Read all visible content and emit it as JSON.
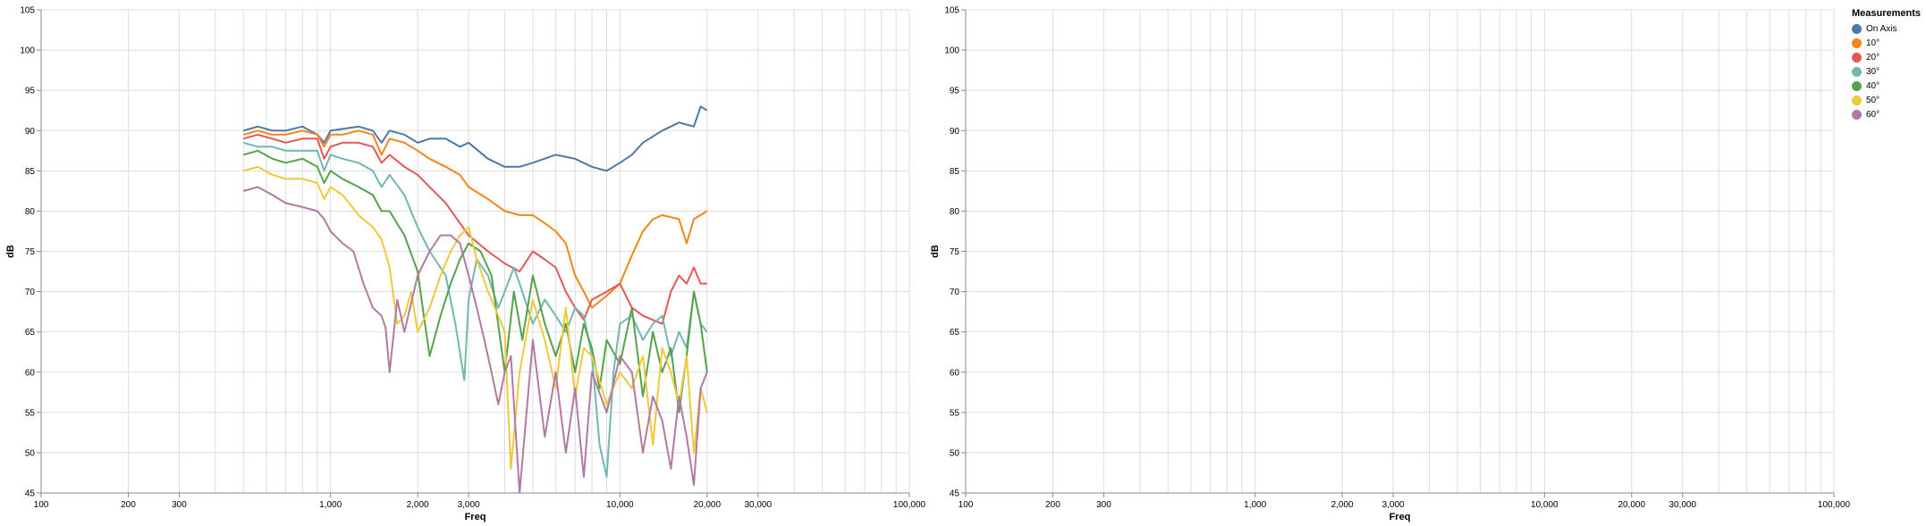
{
  "chart_data": [
    {
      "type": "line",
      "xlabel": "Freq",
      "ylabel": "dB",
      "xscale": "log",
      "xlim": [
        100,
        100000
      ],
      "ylim": [
        45,
        105
      ],
      "xticks": [
        100,
        200,
        300,
        1000,
        2000,
        3000,
        10000,
        20000,
        30000,
        100000
      ],
      "xtick_labels": [
        "100",
        "200",
        "300",
        "1,000",
        "2,000",
        "3,000",
        "10,000",
        "20,000",
        "30,000",
        "100,000"
      ],
      "yticks": [
        45,
        50,
        55,
        60,
        65,
        70,
        75,
        80,
        85,
        90,
        95,
        100,
        105
      ],
      "grid": true,
      "series": [
        {
          "name": "On Axis",
          "color": "#4c78a8",
          "x": [
            500,
            560,
            630,
            700,
            800,
            900,
            950,
            1000,
            1100,
            1250,
            1400,
            1500,
            1600,
            1800,
            2000,
            2200,
            2500,
            2800,
            3000,
            3500,
            4000,
            4500,
            5000,
            6000,
            7000,
            8000,
            9000,
            10000,
            11000,
            12000,
            14000,
            16000,
            18000,
            19000,
            20000
          ],
          "y": [
            90,
            90.5,
            90,
            90,
            90.5,
            89.5,
            88.5,
            90,
            90.2,
            90.5,
            90,
            88.5,
            90,
            89.5,
            88.5,
            89,
            89,
            88,
            88.5,
            86.5,
            85.5,
            85.5,
            86,
            87,
            86.5,
            85.5,
            85,
            86,
            87,
            88.5,
            90,
            91,
            90.5,
            93,
            92.5
          ]
        },
        {
          "name": "10°",
          "color": "#f58518",
          "x": [
            500,
            560,
            630,
            700,
            800,
            900,
            950,
            1000,
            1100,
            1250,
            1400,
            1500,
            1600,
            1800,
            2000,
            2200,
            2500,
            2800,
            3000,
            3500,
            4000,
            4500,
            5000,
            5500,
            6000,
            6500,
            7000,
            7500,
            8000,
            9000,
            10000,
            11000,
            12000,
            13000,
            14000,
            16000,
            17000,
            18000,
            20000
          ],
          "y": [
            89.5,
            90,
            89.5,
            89.5,
            90,
            89.5,
            88,
            89.5,
            89.5,
            90,
            89.5,
            87,
            89,
            88.5,
            87.5,
            86.5,
            85.5,
            84.5,
            83,
            81.5,
            80,
            79.5,
            79.5,
            78.5,
            77.5,
            76,
            72,
            70,
            68,
            69.5,
            71,
            74.5,
            77.5,
            79,
            79.5,
            79,
            76,
            79,
            80
          ]
        },
        {
          "name": "20°",
          "color": "#e45756",
          "x": [
            500,
            560,
            630,
            700,
            800,
            900,
            950,
            1000,
            1100,
            1250,
            1400,
            1500,
            1600,
            1800,
            2000,
            2200,
            2500,
            2800,
            3000,
            3500,
            4000,
            4500,
            5000,
            5500,
            6000,
            6500,
            7000,
            7500,
            8000,
            9000,
            10000,
            11000,
            12000,
            14000,
            15000,
            16000,
            17000,
            18000,
            19000,
            20000
          ],
          "y": [
            89,
            89.5,
            89,
            88.5,
            89,
            89,
            86.5,
            88,
            88.5,
            88.5,
            88,
            86,
            87,
            85.5,
            84.5,
            83,
            81,
            78.5,
            77,
            75,
            73.5,
            72.5,
            75,
            74,
            73,
            70,
            68,
            66.5,
            69,
            70,
            71,
            68,
            67,
            66,
            70,
            72,
            71,
            73,
            71,
            71
          ]
        },
        {
          "name": "30°",
          "color": "#72b7b2",
          "x": [
            500,
            560,
            630,
            700,
            800,
            900,
            950,
            1000,
            1100,
            1250,
            1400,
            1500,
            1600,
            1800,
            2000,
            2200,
            2500,
            2700,
            2900,
            3000,
            3200,
            3500,
            3800,
            4000,
            4300,
            4500,
            5000,
            5500,
            6000,
            6500,
            7000,
            7500,
            8000,
            8500,
            9000,
            9500,
            10000,
            11000,
            12000,
            13000,
            14000,
            15000,
            16000,
            17000,
            18000,
            19000,
            20000
          ],
          "y": [
            88.5,
            88,
            88,
            87.5,
            87.5,
            87.5,
            85,
            87,
            86.5,
            86,
            85,
            83,
            84.5,
            82,
            78,
            75,
            72,
            66,
            59,
            69,
            74,
            72,
            68,
            70,
            73,
            71,
            66,
            69,
            67,
            65,
            68,
            67,
            62,
            51,
            47,
            60,
            66,
            67,
            64,
            66,
            67,
            62,
            65,
            63,
            70,
            66,
            65
          ]
        },
        {
          "name": "40°",
          "color": "#54a24b",
          "x": [
            500,
            560,
            630,
            700,
            800,
            900,
            950,
            1000,
            1100,
            1250,
            1400,
            1500,
            1600,
            1800,
            2000,
            2100,
            2200,
            2400,
            2600,
            2800,
            3000,
            3300,
            3600,
            4000,
            4300,
            4600,
            5000,
            5500,
            6000,
            6500,
            7000,
            7500,
            8000,
            8500,
            9000,
            10000,
            11000,
            12000,
            13000,
            14000,
            15000,
            16000,
            17000,
            18000,
            19000,
            20000
          ],
          "y": [
            87,
            87.5,
            86.5,
            86,
            86.5,
            85.5,
            83.5,
            85,
            84,
            83,
            82,
            80,
            80,
            77,
            72.5,
            67,
            62,
            67,
            71,
            74,
            76,
            75,
            72,
            60,
            70,
            64,
            72,
            66,
            62,
            66,
            60,
            66,
            63,
            58,
            64,
            61,
            68,
            57,
            65,
            60,
            63,
            55,
            62,
            70,
            66,
            60
          ]
        },
        {
          "name": "50°",
          "color": "#eeca3b",
          "x": [
            500,
            560,
            630,
            700,
            800,
            900,
            950,
            1000,
            1100,
            1250,
            1400,
            1500,
            1600,
            1700,
            1800,
            1900,
            2000,
            2200,
            2400,
            2600,
            2800,
            3000,
            3200,
            3500,
            3800,
            4000,
            4200,
            4500,
            5000,
            5500,
            6000,
            6500,
            7000,
            7500,
            8000,
            9000,
            10000,
            11000,
            12000,
            13000,
            14000,
            15000,
            16000,
            17000,
            18000,
            19000,
            20000
          ],
          "y": [
            85,
            85.5,
            84.5,
            84,
            84,
            83.5,
            81.5,
            83,
            82,
            79.5,
            78,
            76.5,
            73,
            66,
            67,
            70,
            65,
            68,
            72,
            75,
            77,
            78,
            74,
            70,
            67,
            65,
            48,
            60,
            69,
            64,
            58,
            68,
            57,
            63,
            62,
            56,
            60,
            58,
            62,
            51,
            63,
            60,
            56,
            62,
            50,
            58,
            55
          ]
        },
        {
          "name": "60°",
          "color": "#b279a2",
          "x": [
            500,
            560,
            630,
            700,
            800,
            900,
            950,
            1000,
            1100,
            1200,
            1300,
            1400,
            1500,
            1550,
            1600,
            1700,
            1800,
            2000,
            2200,
            2400,
            2600,
            2800,
            3000,
            3200,
            3400,
            3600,
            3800,
            4000,
            4200,
            4500,
            5000,
            5500,
            6000,
            6500,
            7000,
            7500,
            8000,
            9000,
            10000,
            11000,
            12000,
            13000,
            14000,
            15000,
            16000,
            17000,
            18000,
            19000,
            20000
          ],
          "y": [
            82.5,
            83,
            82,
            81,
            80.5,
            80,
            79,
            77.5,
            76,
            75,
            71,
            68,
            67,
            65.5,
            60,
            69,
            65,
            72,
            75,
            77,
            77,
            76,
            72,
            68,
            64,
            60,
            56,
            60,
            62,
            45,
            64,
            52,
            60,
            50,
            58,
            47,
            60,
            55,
            62,
            60,
            50,
            57,
            54,
            48,
            57,
            52,
            46,
            58,
            60
          ]
        }
      ]
    },
    {
      "type": "line",
      "xlabel": "Freq",
      "ylabel": "dB",
      "xscale": "log",
      "xlim": [
        100,
        100000
      ],
      "ylim": [
        45,
        105
      ],
      "xticks": [
        100,
        200,
        300,
        1000,
        2000,
        3000,
        10000,
        20000,
        30000,
        100000
      ],
      "xtick_labels": [
        "100",
        "200",
        "300",
        "1,000",
        "2,000",
        "3,000",
        "10,000",
        "20,000",
        "30,000",
        "100,000"
      ],
      "yticks": [
        45,
        50,
        55,
        60,
        65,
        70,
        75,
        80,
        85,
        90,
        95,
        100,
        105
      ],
      "grid": true,
      "series": []
    }
  ],
  "legend": {
    "title": "Measurements",
    "items": [
      {
        "label": "On Axis",
        "color": "#4c78a8"
      },
      {
        "label": "10°",
        "color": "#f58518"
      },
      {
        "label": "20°",
        "color": "#e45756"
      },
      {
        "label": "30°",
        "color": "#72b7b2"
      },
      {
        "label": "40°",
        "color": "#54a24b"
      },
      {
        "label": "50°",
        "color": "#eeca3b"
      },
      {
        "label": "60°",
        "color": "#b279a2"
      }
    ]
  }
}
